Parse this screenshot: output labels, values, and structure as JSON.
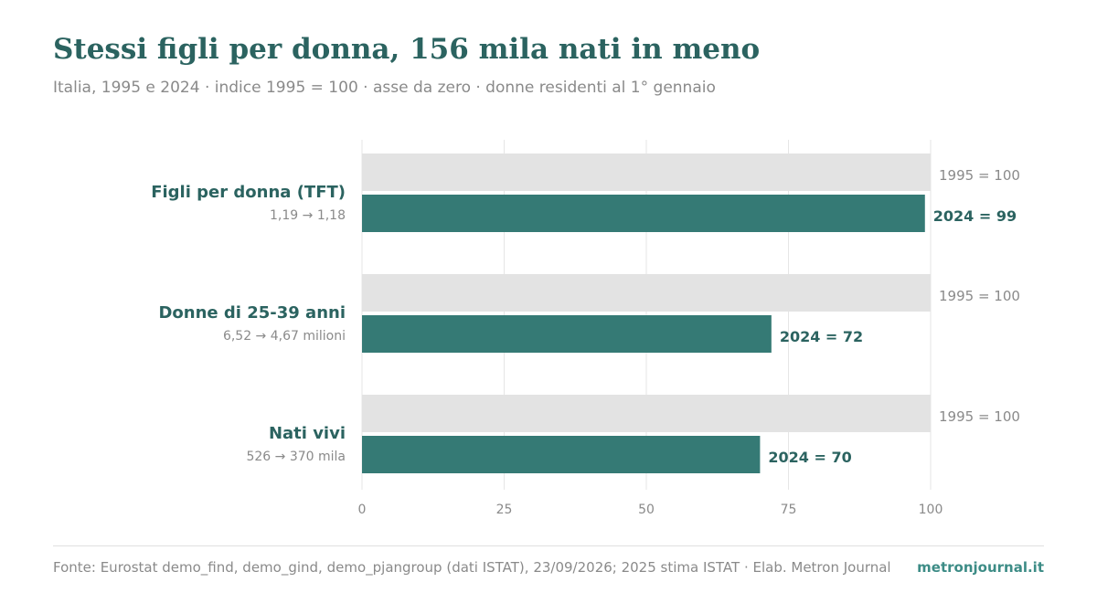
{
  "header": {
    "title": "Stessi figli per donna, 156 mila nati in meno",
    "subtitle": "Italia, 1995 e 2024 · indice 1995 = 100 · asse da zero · donne residenti al 1° gennaio"
  },
  "colors": {
    "baseline_bar": "#e3e3e3",
    "value_bar": "#357a75",
    "accent_text": "#2b6360",
    "muted_text": "#8a8a8a",
    "grid": "#e6e6e6"
  },
  "chart_data": {
    "type": "bar",
    "orientation": "horizontal",
    "xlim": [
      0,
      100
    ],
    "xticks": [
      "0",
      "25",
      "50",
      "75",
      "100"
    ],
    "grid": true,
    "categories": [
      {
        "label": "Figli per donna (TFT)",
        "sublabel": "1,19 → 1,18"
      },
      {
        "label": "Donne di 25-39 anni",
        "sublabel": "6,52 → 4,67 milioni"
      },
      {
        "label": "Nati vivi",
        "sublabel": "526 → 370 mila"
      }
    ],
    "series": [
      {
        "name": "1995",
        "values": [
          100,
          100,
          100
        ],
        "labels": [
          "1995 = 100",
          "1995 = 100",
          "1995 = 100"
        ]
      },
      {
        "name": "2024",
        "values": [
          99,
          72,
          70
        ],
        "labels": [
          "2024 = 99",
          "2024 = 72",
          "2024 = 70"
        ]
      }
    ]
  },
  "footer": {
    "source": "Fonte: Eurostat demo_find, demo_gind, demo_pjangroup (dati ISTAT), 23/09/2026; 2025 stima ISTAT · Elab. Metron Journal",
    "brand": "metronjournal.it"
  }
}
